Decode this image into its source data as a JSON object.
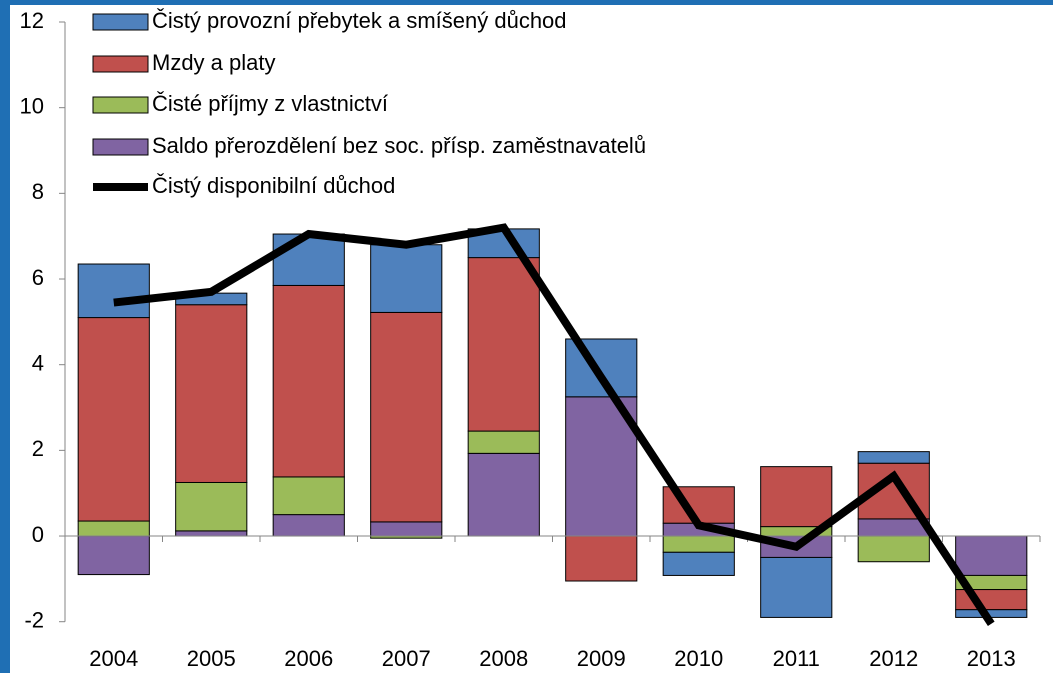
{
  "chart_data": {
    "type": "bar",
    "stacked": true,
    "categories": [
      "2004",
      "2005",
      "2006",
      "2007",
      "2008",
      "2009",
      "2010",
      "2011",
      "2012",
      "2013"
    ],
    "series": [
      {
        "name": "Čistý provozní přebytek a smíšený důchod",
        "color": "#4f81bd",
        "values": [
          1.25,
          0.27,
          1.2,
          1.58,
          0.67,
          1.35,
          -0.54,
          -1.4,
          0.27,
          -0.18
        ]
      },
      {
        "name": "Mzdy a platy",
        "color": "#c0504d",
        "values": [
          4.75,
          4.15,
          4.47,
          4.89,
          4.05,
          -1.05,
          0.85,
          1.4,
          1.3,
          -0.47
        ]
      },
      {
        "name": "Čisté příjmy z vlastnictví",
        "color": "#9bbb59",
        "values": [
          0.35,
          1.13,
          0.88,
          -0.05,
          0.52,
          0,
          -0.38,
          0.22,
          -0.6,
          -0.33
        ]
      },
      {
        "name": "Saldo přerozdělení bez soc. přísp. zaměstnavatelů",
        "color": "#8064a2",
        "values": [
          -0.9,
          0.12,
          0.5,
          0.33,
          1.93,
          3.25,
          0.3,
          -0.5,
          0.4,
          -0.92
        ]
      },
      {
        "name": "Čistý disponibilní důchod",
        "color": "#000000",
        "type": "line",
        "values": [
          5.45,
          5.7,
          7.05,
          6.8,
          7.2,
          3.7,
          0.25,
          -0.25,
          1.4,
          -2.05
        ]
      }
    ],
    "ylim": [
      -2,
      12
    ],
    "yticks": [
      -2,
      0,
      2,
      4,
      6,
      8,
      10,
      12
    ],
    "grid": false,
    "legend": "top-left"
  }
}
